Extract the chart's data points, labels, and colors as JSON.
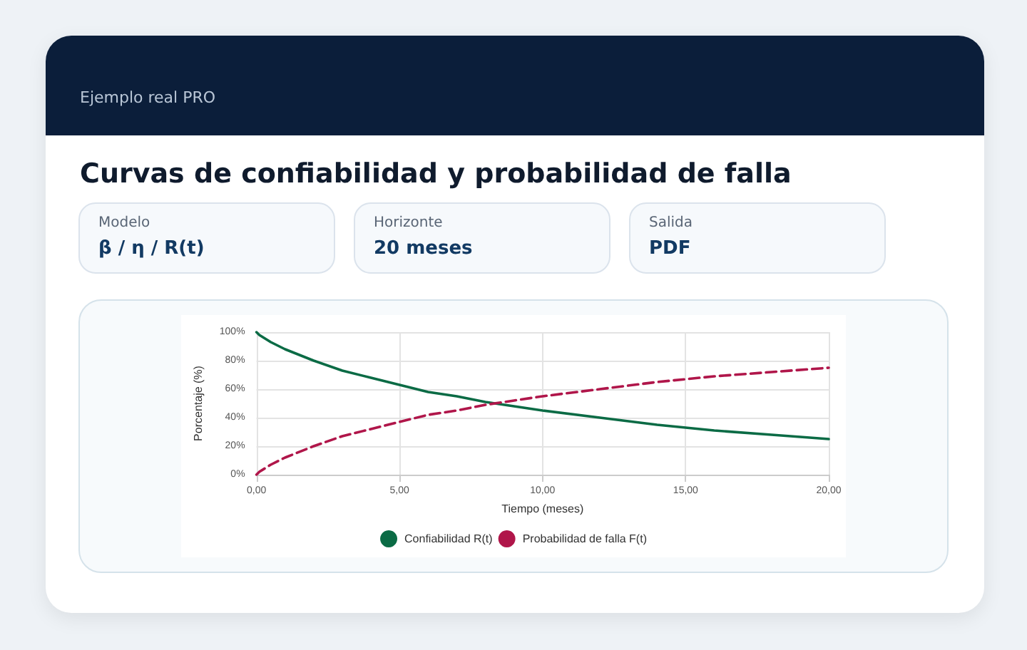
{
  "chart_data": {
    "type": "line",
    "title": "Curvas de confiabilidad y probabilidad de falla",
    "subtitle": "Ejemplo real PRO",
    "annotations": [
      "Modelo",
      "β / η / R(t)",
      "Horizonte",
      "20 meses",
      "Salida",
      "PDF"
    ],
    "xlabel": "Tiempo (meses)",
    "ylabel": "Porcentaje (%)",
    "x": [
      0,
      0.1,
      0.5,
      1,
      2,
      3,
      4,
      5,
      6,
      7,
      8,
      9,
      10,
      12,
      14,
      16,
      18,
      20
    ],
    "series": [
      {
        "name": "Confiabilidad R(t)",
        "color": "#0b6b45",
        "line_style": "solid",
        "values": [
          100,
          98,
          93,
          88,
          80,
          73,
          68,
          63,
          58,
          55,
          51,
          48,
          45,
          40,
          35,
          31,
          28,
          25
        ]
      },
      {
        "name": "Probabilidad de falla F(t)",
        "color": "#b0164a",
        "line_style": "dashed",
        "values": [
          0,
          2,
          7,
          12,
          20,
          27,
          32,
          37,
          42,
          45,
          49,
          52,
          55,
          60,
          65,
          69,
          72,
          75
        ]
      }
    ],
    "xlim": [
      0,
      20
    ],
    "xticks": [
      {
        "value": 0,
        "label": "0,00"
      },
      {
        "value": 5,
        "label": "5,00"
      },
      {
        "value": 10,
        "label": "10,00"
      },
      {
        "value": 15,
        "label": "15,00"
      },
      {
        "value": 20,
        "label": "20,00"
      }
    ],
    "ylim": [
      0,
      100
    ],
    "yticks": [
      {
        "value": 0,
        "label": "0%"
      },
      {
        "value": 20,
        "label": "20%"
      },
      {
        "value": 40,
        "label": "40%"
      },
      {
        "value": 60,
        "label": "60%"
      },
      {
        "value": 80,
        "label": "80%"
      },
      {
        "value": 100,
        "label": "100%"
      }
    ],
    "grid": true,
    "legend": "bottom",
    "marker": "none"
  }
}
